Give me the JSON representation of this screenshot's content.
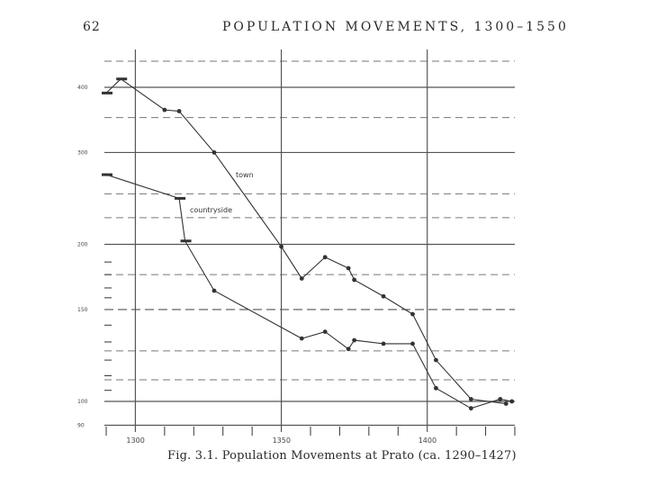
{
  "header": {
    "page_number": "62",
    "running_head": "POPULATION MOVEMENTS, 1300–1550"
  },
  "caption": "Fig. 3.1. Population Movements at Prato (ca. 1290–1427)",
  "chart_data": {
    "type": "line",
    "title": "Fig. 3.1. Population Movements at Prato (ca. 1290–1427)",
    "xlabel": "",
    "ylabel": "",
    "scale": "log",
    "xlim": [
      1290,
      1430
    ],
    "ylim": [
      90,
      440
    ],
    "x_ticks": [
      {
        "value": 1300,
        "label": "1300"
      },
      {
        "value": 1350,
        "label": "1350"
      },
      {
        "value": 1400,
        "label": "1400"
      }
    ],
    "y_ticks": [
      {
        "value": 400,
        "label": "400"
      },
      {
        "value": 300,
        "label": "300"
      },
      {
        "value": 200,
        "label": "200"
      },
      {
        "value": 150,
        "label": "150"
      },
      {
        "value": 100,
        "label": "100"
      },
      {
        "value": 90,
        "label": "90"
      }
    ],
    "grid": true,
    "series": [
      {
        "name": "town",
        "points": [
          {
            "x": 1290,
            "y": 390,
            "m": "bar"
          },
          {
            "x": 1295,
            "y": 415,
            "m": "bar"
          },
          {
            "x": 1310,
            "y": 362,
            "m": "dot"
          },
          {
            "x": 1315,
            "y": 360,
            "m": "dot"
          },
          {
            "x": 1327,
            "y": 300,
            "m": "dot"
          },
          {
            "x": 1350,
            "y": 198,
            "m": "dot"
          },
          {
            "x": 1357,
            "y": 172,
            "m": "dot"
          },
          {
            "x": 1365,
            "y": 189,
            "m": "dot"
          },
          {
            "x": 1373,
            "y": 180,
            "m": "dot"
          },
          {
            "x": 1375,
            "y": 171,
            "m": "dot"
          },
          {
            "x": 1385,
            "y": 159,
            "m": "dot"
          },
          {
            "x": 1395,
            "y": 147,
            "m": "dot"
          },
          {
            "x": 1403,
            "y": 120,
            "m": "dot"
          },
          {
            "x": 1415,
            "y": 101,
            "m": "dot"
          },
          {
            "x": 1427,
            "y": 99,
            "m": "dot"
          }
        ]
      },
      {
        "name": "countryside",
        "points": [
          {
            "x": 1290,
            "y": 272,
            "m": "bar"
          },
          {
            "x": 1315,
            "y": 245,
            "m": "bar"
          },
          {
            "x": 1317,
            "y": 203,
            "m": "bar"
          },
          {
            "x": 1327,
            "y": 163,
            "m": "dot"
          },
          {
            "x": 1357,
            "y": 132,
            "m": "dot"
          },
          {
            "x": 1365,
            "y": 136,
            "m": "dot"
          },
          {
            "x": 1373,
            "y": 126,
            "m": "dot"
          },
          {
            "x": 1375,
            "y": 131,
            "m": "dot"
          },
          {
            "x": 1385,
            "y": 129,
            "m": "dot"
          },
          {
            "x": 1395,
            "y": 129,
            "m": "dot"
          },
          {
            "x": 1403,
            "y": 106,
            "m": "dot"
          },
          {
            "x": 1415,
            "y": 97,
            "m": "dot"
          },
          {
            "x": 1425,
            "y": 101,
            "m": "dot"
          },
          {
            "x": 1429,
            "y": 100,
            "m": "dot"
          }
        ]
      }
    ],
    "colors": {
      "ink": "#333333",
      "grid": "#555555"
    }
  }
}
